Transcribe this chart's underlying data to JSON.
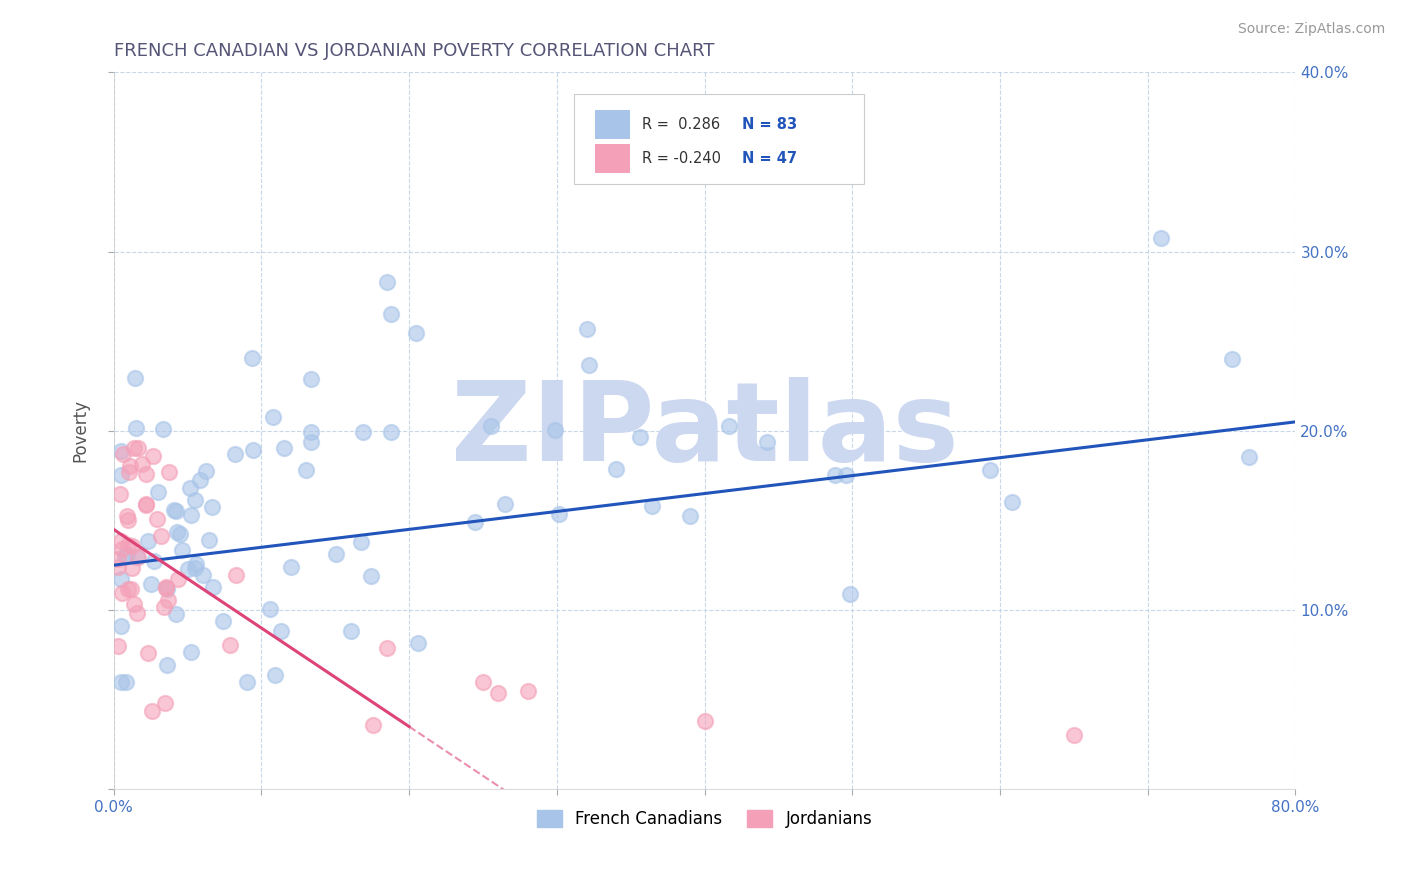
{
  "title": "FRENCH CANADIAN VS JORDANIAN POVERTY CORRELATION CHART",
  "source": "Source: ZipAtlas.com",
  "ylabel": "Poverty",
  "xlim": [
    0.0,
    0.8
  ],
  "ylim": [
    0.0,
    0.4
  ],
  "xtick_vals": [
    0.0,
    0.1,
    0.2,
    0.3,
    0.4,
    0.5,
    0.6,
    0.7,
    0.8
  ],
  "ytick_vals": [
    0.0,
    0.1,
    0.2,
    0.3,
    0.4
  ],
  "xtick_labels": [
    "0.0%",
    "",
    "",
    "",
    "",
    "",
    "",
    "",
    "80.0%"
  ],
  "ytick_labels_right": [
    "",
    "10.0%",
    "20.0%",
    "30.0%",
    "40.0%"
  ],
  "grid_color": "#c8d8e8",
  "background_color": "#ffffff",
  "title_color": "#555577",
  "ylabel_color": "#555555",
  "tick_color": "#4472c4",
  "watermark": "ZIPatlas",
  "watermark_color": "#ccd8f0",
  "legend_R1": "R =  0.286",
  "legend_N1": "N = 83",
  "legend_R2": "R = -0.240",
  "legend_N2": "N = 47",
  "blue_dot_color": "#a8c4e8",
  "pink_dot_color": "#f4a0b8",
  "blue_line_color": "#2255bb",
  "pink_line_color": "#dd4477",
  "blue_line_y0": 0.125,
  "blue_line_y1": 0.205,
  "pink_line_y0": 0.145,
  "pink_line_x_solid_end": 0.2,
  "pink_line_x_dash_end": 0.38,
  "pink_slope": -0.55
}
